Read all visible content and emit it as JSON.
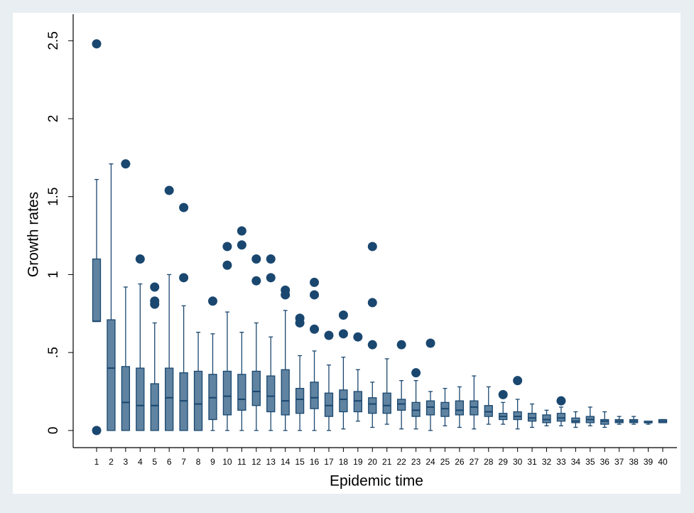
{
  "chart_data": {
    "type": "box",
    "x_label": "Epidemic time",
    "y_label": "Growth rates",
    "categories": [
      "1",
      "2",
      "3",
      "4",
      "5",
      "6",
      "7",
      "8",
      "9",
      "10",
      "11",
      "12",
      "13",
      "14",
      "15",
      "16",
      "17",
      "18",
      "19",
      "20",
      "21",
      "22",
      "23",
      "24",
      "25",
      "26",
      "27",
      "28",
      "29",
      "30",
      "31",
      "32",
      "33",
      "34",
      "35",
      "36",
      "37",
      "38",
      "39",
      "40"
    ],
    "series": [
      {
        "color": "#5f83a0",
        "edge_color": "#1a476f",
        "outlier_color": "#1a476f",
        "min": [
          0.7,
          0,
          0,
          0,
          0,
          0,
          0,
          0,
          0,
          0,
          0,
          0,
          0,
          0,
          0,
          0,
          0,
          0.01,
          0.06,
          0.02,
          0.04,
          0.01,
          0.01,
          0,
          0.03,
          0.02,
          0.01,
          0.04,
          0.04,
          0.01,
          0.02,
          0.03,
          0.03,
          0.02,
          0.03,
          0.02,
          0.04,
          0.04,
          0.04,
          0.05
        ],
        "q1": [
          0.7,
          0,
          0,
          0,
          0,
          0,
          0,
          0,
          0.07,
          0.1,
          0.13,
          0.16,
          0.12,
          0.1,
          0.11,
          0.14,
          0.09,
          0.12,
          0.12,
          0.11,
          0.11,
          0.13,
          0.09,
          0.1,
          0.09,
          0.1,
          0.1,
          0.09,
          0.07,
          0.07,
          0.06,
          0.05,
          0.06,
          0.05,
          0.05,
          0.04,
          0.05,
          0.05,
          0.05,
          0.05
        ],
        "median": [
          0.7,
          0.4,
          0.18,
          0.16,
          0.16,
          0.21,
          0.19,
          0.17,
          0.21,
          0.22,
          0.2,
          0.25,
          0.22,
          0.19,
          0.2,
          0.21,
          0.16,
          0.2,
          0.19,
          0.17,
          0.16,
          0.17,
          0.13,
          0.15,
          0.14,
          0.13,
          0.15,
          0.12,
          0.09,
          0.09,
          0.08,
          0.07,
          0.08,
          0.06,
          0.07,
          0.06,
          0.06,
          0.06,
          0.05,
          0.06
        ],
        "q3": [
          1.1,
          0.71,
          0.41,
          0.4,
          0.3,
          0.4,
          0.37,
          0.38,
          0.36,
          0.38,
          0.36,
          0.38,
          0.35,
          0.39,
          0.27,
          0.31,
          0.24,
          0.26,
          0.25,
          0.21,
          0.24,
          0.2,
          0.18,
          0.19,
          0.18,
          0.19,
          0.19,
          0.16,
          0.11,
          0.12,
          0.11,
          0.1,
          0.11,
          0.08,
          0.09,
          0.07,
          0.07,
          0.07,
          0.06,
          0.07
        ],
        "max": [
          1.61,
          1.71,
          0.92,
          0.94,
          0.69,
          1.0,
          0.8,
          0.63,
          0.62,
          0.76,
          0.63,
          0.69,
          0.6,
          0.77,
          0.48,
          0.51,
          0.42,
          0.47,
          0.39,
          0.31,
          0.46,
          0.32,
          0.32,
          0.25,
          0.27,
          0.28,
          0.35,
          0.28,
          0.18,
          0.2,
          0.17,
          0.13,
          0.15,
          0.12,
          0.15,
          0.12,
          0.09,
          0.09,
          0.06,
          0.07
        ],
        "outliers": [
          [
            2.48,
            0
          ],
          [],
          [
            1.71
          ],
          [
            1.1
          ],
          [
            0.92,
            0.83,
            0.81
          ],
          [
            1.54
          ],
          [
            1.43,
            0.98
          ],
          [],
          [
            0.83
          ],
          [
            1.18,
            1.06
          ],
          [
            1.28,
            1.19
          ],
          [
            1.1,
            0.96
          ],
          [
            1.1,
            0.98
          ],
          [
            0.9,
            0.87
          ],
          [
            0.72,
            0.69
          ],
          [
            0.95,
            0.87,
            0.65
          ],
          [
            0.61
          ],
          [
            0.74,
            0.62
          ],
          [
            0.6
          ],
          [
            1.18,
            0.82,
            0.55
          ],
          [],
          [
            0.55
          ],
          [
            0.37
          ],
          [
            0.56
          ],
          [],
          [],
          [],
          [],
          [
            0.23
          ],
          [
            0.32
          ],
          [],
          [],
          [
            0.19
          ],
          [],
          [],
          [],
          [],
          [],
          [],
          []
        ]
      }
    ],
    "ylim": [
      -0.11,
      2.67
    ],
    "yticks": [
      0,
      {
        "value": 0.5,
        "label": ".5"
      },
      1,
      1.5,
      2,
      2.5
    ],
    "grid": false
  }
}
